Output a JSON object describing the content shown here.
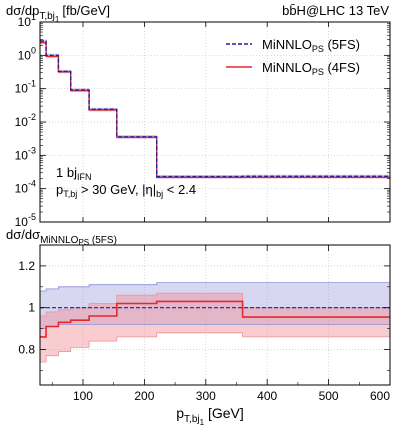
{
  "chart_data": [
    {
      "type": "line",
      "panel": "main",
      "ylabel": "dσ/dp",
      "ylabel_sub": "T,bj",
      "ylabel_subsub": "1",
      "ylabel_unit": "[fb/GeV]",
      "title_right": "bb̄H@LHC 13 TeV",
      "yscale": "log",
      "ylim": [
        1e-05,
        10
      ],
      "xlim": [
        30,
        600
      ],
      "y_ticks": [
        {
          "v": 10,
          "b": "10",
          "e": "1"
        },
        {
          "v": 1,
          "b": "10",
          "e": "0"
        },
        {
          "v": 0.1,
          "b": "10",
          "e": "-1"
        },
        {
          "v": 0.01,
          "b": "10",
          "e": "-2"
        },
        {
          "v": 0.001,
          "b": "10",
          "e": "-3"
        },
        {
          "v": 0.0001,
          "b": "10",
          "e": "-4"
        },
        {
          "v": 1e-05,
          "b": "10",
          "e": "-5"
        }
      ],
      "bin_edges": [
        30,
        40,
        60,
        80,
        110,
        155,
        220,
        360,
        600
      ],
      "series": [
        {
          "name": "MiNNLO",
          "name_sub": "PS",
          "name_suffix": " (5FS)",
          "color": "#1f1f9e",
          "style": "dashed",
          "values": [
            2.7,
            1.0,
            0.33,
            0.092,
            0.024,
            0.0036,
            0.00023,
            0.000235
          ]
        },
        {
          "name": "MiNNLO",
          "name_sub": "PS",
          "name_suffix": " (4FS)",
          "color": "#e8262d",
          "style": "solid",
          "values": [
            2.4,
            0.93,
            0.32,
            0.088,
            0.023,
            0.0035,
            0.00022,
            0.00022
          ]
        }
      ],
      "annotation": {
        "line1": "1 bj",
        "line1_sub": "IFN",
        "line2_a": "p",
        "line2_sub": "T,bj",
        "line2_b": " > 30 GeV, |η|",
        "line2_sub2": "bj",
        "line2_c": " < 2.4"
      },
      "legend_position": "top-right",
      "grid": true
    },
    {
      "type": "line",
      "panel": "ratio",
      "ylabel": "dσ/dσ",
      "ylabel_sub": "MiNNLO",
      "ylabel_subsub": "PS",
      "ylabel_suffix": " (5FS)",
      "xlabel": "p",
      "xlabel_sub": "T,bj",
      "xlabel_subsub": "1",
      "xlabel_unit": " [GeV]",
      "ylim": [
        0.63,
        1.3
      ],
      "xlim": [
        30,
        600
      ],
      "x_ticks": [
        100,
        200,
        300,
        400,
        500,
        600
      ],
      "y_ticks": [
        0.8,
        1,
        1.2
      ],
      "y_tick_labels": [
        "0.8",
        "1",
        "1.2"
      ],
      "bin_edges": [
        30,
        40,
        60,
        80,
        110,
        155,
        220,
        360,
        600
      ],
      "series": [
        {
          "name": "MiNNLO",
          "name_sub": "PS",
          "name_suffix": " (5FS)",
          "color": "#1f1f9e",
          "band_color": "#8c8cd9",
          "values": [
            1,
            1,
            1,
            1,
            1,
            1,
            1,
            1
          ],
          "band_low": [
            0.9,
            0.91,
            0.92,
            0.92,
            0.92,
            0.92,
            0.92,
            0.92
          ],
          "band_high": [
            1.08,
            1.09,
            1.1,
            1.1,
            1.11,
            1.11,
            1.12,
            1.12
          ]
        },
        {
          "name": "MiNNLO",
          "name_sub": "PS",
          "name_suffix": " (4FS)",
          "color": "#e8262d",
          "band_color": "#f28f95",
          "values": [
            0.86,
            0.91,
            0.93,
            0.94,
            0.96,
            1.02,
            1.03,
            0.955
          ],
          "band_low": [
            0.74,
            0.77,
            0.79,
            0.81,
            0.84,
            0.86,
            0.88,
            0.86
          ],
          "band_high": [
            0.96,
            0.98,
            0.99,
            1.0,
            1.02,
            1.06,
            1.07,
            1.0
          ]
        }
      ],
      "grid": true
    }
  ]
}
